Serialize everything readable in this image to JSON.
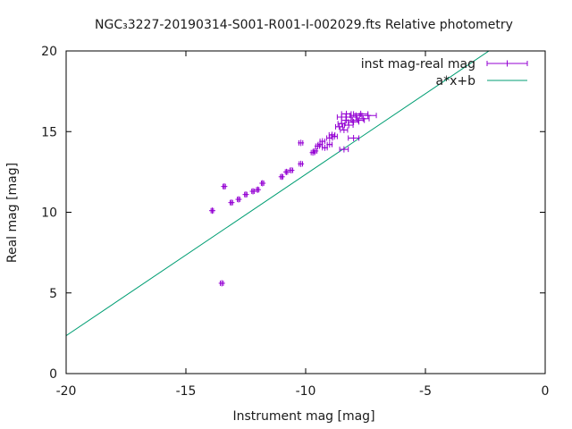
{
  "chart_data": {
    "type": "scatter",
    "title": "NGC₃3227-20190314-S001-R001-I-002029.fts Relative photometry",
    "xlabel": "Instrument mag [mag]",
    "ylabel": "Real mag [mag]",
    "xlim": [
      -20,
      0
    ],
    "ylim": [
      0,
      20
    ],
    "xticks": [
      -20,
      -15,
      -10,
      -5,
      0
    ],
    "yticks": [
      0,
      5,
      10,
      15,
      20
    ],
    "grid": false,
    "legend_position": "top-right",
    "colors": {
      "points": "#9400d3",
      "fit": "#009e73",
      "frame": "#000000"
    },
    "series": [
      {
        "name": "inst mag-real mag",
        "type": "scatter-xerr",
        "points": [
          {
            "x": -13.5,
            "y": 5.6,
            "xerr": 0.06
          },
          {
            "x": -13.9,
            "y": 10.1,
            "xerr": 0.05
          },
          {
            "x": -13.4,
            "y": 11.6,
            "xerr": 0.05
          },
          {
            "x": -13.1,
            "y": 10.6,
            "xerr": 0.05
          },
          {
            "x": -12.8,
            "y": 10.8,
            "xerr": 0.05
          },
          {
            "x": -12.5,
            "y": 11.1,
            "xerr": 0.05
          },
          {
            "x": -12.2,
            "y": 11.3,
            "xerr": 0.05
          },
          {
            "x": -12.0,
            "y": 11.4,
            "xerr": 0.05
          },
          {
            "x": -11.8,
            "y": 11.8,
            "xerr": 0.05
          },
          {
            "x": -11.0,
            "y": 12.2,
            "xerr": 0.05
          },
          {
            "x": -10.8,
            "y": 12.5,
            "xerr": 0.05
          },
          {
            "x": -10.6,
            "y": 12.6,
            "xerr": 0.06
          },
          {
            "x": -10.2,
            "y": 13.0,
            "xerr": 0.07
          },
          {
            "x": -10.2,
            "y": 14.3,
            "xerr": 0.08
          },
          {
            "x": -9.7,
            "y": 13.7,
            "xerr": 0.07
          },
          {
            "x": -9.6,
            "y": 13.8,
            "xerr": 0.07
          },
          {
            "x": -9.5,
            "y": 14.1,
            "xerr": 0.08
          },
          {
            "x": -9.4,
            "y": 14.2,
            "xerr": 0.08
          },
          {
            "x": -9.2,
            "y": 14.0,
            "xerr": 0.1
          },
          {
            "x": -9.3,
            "y": 14.4,
            "xerr": 0.1
          },
          {
            "x": -9.0,
            "y": 14.2,
            "xerr": 0.1
          },
          {
            "x": -9.0,
            "y": 14.6,
            "xerr": 0.12
          },
          {
            "x": -8.9,
            "y": 14.8,
            "xerr": 0.12
          },
          {
            "x": -8.8,
            "y": 14.7,
            "xerr": 0.12
          },
          {
            "x": -8.6,
            "y": 15.3,
            "xerr": 0.15
          },
          {
            "x": -8.5,
            "y": 15.5,
            "xerr": 0.15
          },
          {
            "x": -8.5,
            "y": 15.9,
            "xerr": 0.18
          },
          {
            "x": -8.4,
            "y": 13.9,
            "xerr": 0.18
          },
          {
            "x": -8.4,
            "y": 15.1,
            "xerr": 0.15
          },
          {
            "x": -8.3,
            "y": 15.7,
            "xerr": 0.2
          },
          {
            "x": -8.3,
            "y": 16.1,
            "xerr": 0.2
          },
          {
            "x": -8.2,
            "y": 15.4,
            "xerr": 0.18
          },
          {
            "x": -8.1,
            "y": 15.9,
            "xerr": 0.2
          },
          {
            "x": -8.0,
            "y": 14.6,
            "xerr": 0.22
          },
          {
            "x": -8.0,
            "y": 15.6,
            "xerr": 0.22
          },
          {
            "x": -7.9,
            "y": 16.0,
            "xerr": 0.25
          },
          {
            "x": -7.8,
            "y": 15.7,
            "xerr": 0.25
          },
          {
            "x": -7.7,
            "y": 16.1,
            "xerr": 0.3
          },
          {
            "x": -7.6,
            "y": 15.8,
            "xerr": 0.25
          },
          {
            "x": -7.4,
            "y": 16.0,
            "xerr": 0.35
          }
        ]
      },
      {
        "name": "a*x+b",
        "type": "line",
        "slope": 1.0,
        "intercept": 22.35
      }
    ]
  }
}
